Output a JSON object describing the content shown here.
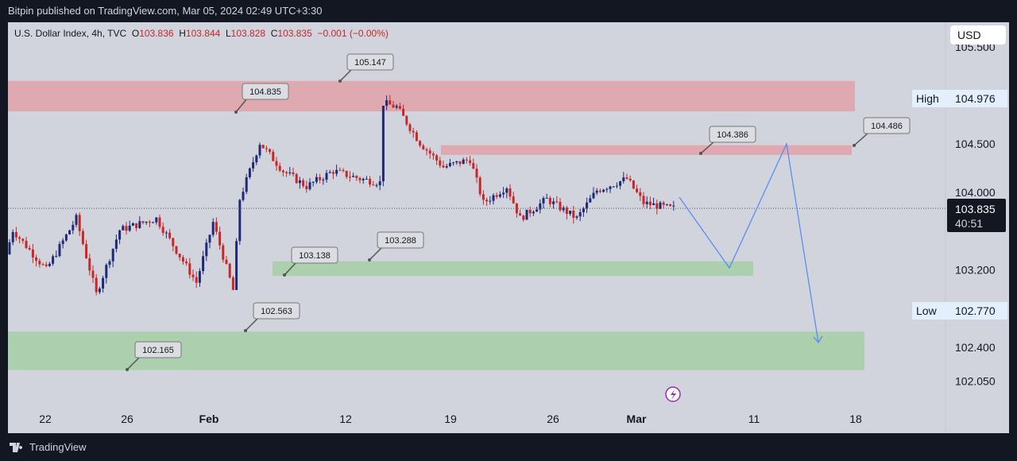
{
  "header": {
    "published": "Bitpin published on TradingView.com, Mar 05, 2024 02:49 UTC+3:30"
  },
  "legend": {
    "symbol": "U.S. Dollar Index, 4h, TVC",
    "o_label": "O",
    "o": "103.836",
    "h_label": "H",
    "h": "103.844",
    "l_label": "L",
    "l": "103.828",
    "c_label": "C",
    "c": "103.835",
    "change": "−0.001 (−0.00%)"
  },
  "currency": "USD",
  "footer": {
    "brand": "TradingView"
  },
  "colors": {
    "up": "#1e2a78",
    "down": "#c62828",
    "resistance": "#e0a4ac",
    "support": "#a7cfa9",
    "path": "#5b8def"
  },
  "chart_data": {
    "type": "candlestick",
    "price_ticks": [
      "105.500",
      "104.500",
      "104.000",
      "103.200",
      "102.400",
      "102.050"
    ],
    "price_tick_values": [
      105.5,
      104.5,
      104.0,
      103.2,
      102.4,
      102.05
    ],
    "high": {
      "label": "High",
      "value": "104.976"
    },
    "low": {
      "label": "Low",
      "value": "102.770"
    },
    "last": {
      "price": "103.835",
      "countdown": "40:51"
    },
    "time_ticks": [
      "22",
      "26",
      "Feb",
      "12",
      "19",
      "26",
      "Mar",
      "11",
      "18"
    ],
    "path_keypoints": [
      [
        0,
        103.36
      ],
      [
        2,
        103.61
      ],
      [
        12,
        103.2
      ],
      [
        21,
        103.73
      ],
      [
        27,
        102.95
      ],
      [
        34,
        103.61
      ],
      [
        45,
        103.73
      ],
      [
        57,
        103.07
      ],
      [
        62,
        103.69
      ],
      [
        68,
        102.99
      ],
      [
        70,
        103.93
      ],
      [
        76,
        104.51
      ],
      [
        83,
        104.22
      ],
      [
        90,
        104.06
      ],
      [
        98,
        104.22
      ],
      [
        106,
        104.14
      ],
      [
        112,
        104.1
      ],
      [
        113,
        104.92
      ],
      [
        117,
        104.88
      ],
      [
        124,
        104.51
      ],
      [
        131,
        104.26
      ],
      [
        139,
        104.34
      ],
      [
        143,
        103.89
      ],
      [
        150,
        104.06
      ],
      [
        154,
        103.73
      ],
      [
        162,
        103.93
      ],
      [
        171,
        103.73
      ],
      [
        177,
        104.02
      ],
      [
        186,
        104.14
      ],
      [
        191,
        103.89
      ],
      [
        199,
        103.835
      ]
    ],
    "zones": [
      {
        "type": "resistance",
        "top": 105.15,
        "bottom": 104.835
      },
      {
        "type": "resistance",
        "top": 104.486,
        "bottom": 104.386
      },
      {
        "type": "support",
        "top": 103.288,
        "bottom": 103.138
      },
      {
        "type": "support",
        "top": 102.563,
        "bottom": 102.165
      }
    ],
    "callouts": [
      "105.147",
      "104.835",
      "104.386",
      "104.486",
      "103.138",
      "103.288",
      "102.563",
      "102.165"
    ],
    "projection": [
      103.95,
      103.22,
      104.5,
      102.45
    ]
  }
}
